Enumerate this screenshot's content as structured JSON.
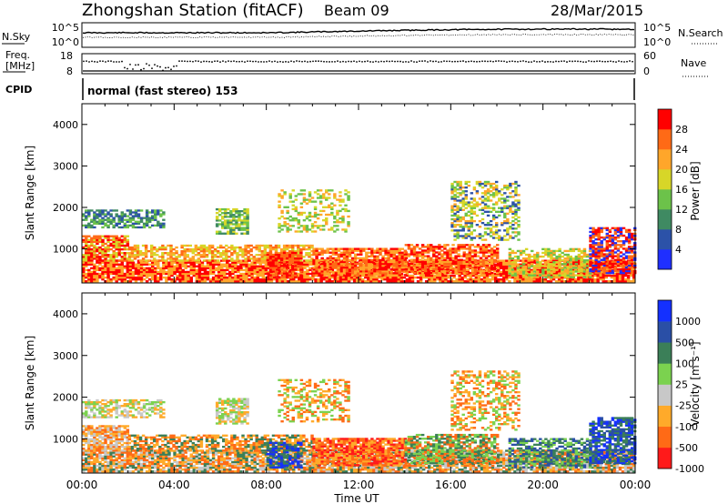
{
  "header": {
    "station": "Zhongshan Station (fitACF)",
    "beam": "Beam 09",
    "date": "28/Mar/2015"
  },
  "summary_panels": {
    "nsky_label": "N.Sky",
    "nsky_ticks": [
      "10^5",
      "10^0"
    ],
    "nsearch_label": "N.Search",
    "nsearch_ticks": [
      "10^5",
      "10^0"
    ],
    "freq_label_1": "Freq.",
    "freq_label_2": "[MHz]",
    "freq_ticks": [
      "18",
      "8"
    ],
    "nave_label": "Nave",
    "nave_ticks": [
      "60",
      "0"
    ],
    "cpid_label": "CPID",
    "cpid_value": "normal (fast stereo) 153"
  },
  "colors": {
    "power_scale": [
      "#1f2fff",
      "#2c52a8",
      "#3f8a62",
      "#6cc24a",
      "#d7d628",
      "#ffa62a",
      "#ff6a16",
      "#ff0000"
    ],
    "velocity_scale": [
      "#ff1a1a",
      "#ff6a16",
      "#ffaa2a",
      "#c8c8c8",
      "#7bd24f",
      "#3b7f58",
      "#2a4fa6",
      "#1430ff"
    ]
  },
  "chart_data": [
    {
      "type": "heatmap",
      "name": "power-panel",
      "ylabel": "Slant Range [km]",
      "xlabel": "",
      "x_ticks": [
        "00:00",
        "04:00",
        "08:00",
        "12:00",
        "16:00",
        "20:00",
        "00:00"
      ],
      "y_ticks": [
        1000,
        2000,
        3000,
        4000
      ],
      "ylim": [
        180,
        4500
      ],
      "xlim_hours": [
        0,
        24
      ],
      "colorbar": {
        "label": "Power [dB]",
        "ticks": [
          "4",
          "8",
          "12",
          "16",
          "20",
          "24",
          "28"
        ],
        "range": [
          0,
          32
        ]
      }
    },
    {
      "type": "heatmap",
      "name": "velocity-panel",
      "ylabel": "Slant Range [km]",
      "xlabel": "Time UT",
      "x_ticks": [
        "00:00",
        "04:00",
        "08:00",
        "12:00",
        "16:00",
        "20:00",
        "00:00"
      ],
      "y_ticks": [
        1000,
        2000,
        3000,
        4000
      ],
      "ylim": [
        180,
        4500
      ],
      "xlim_hours": [
        0,
        24
      ],
      "colorbar": {
        "label": "Velocity [m s⁻¹]",
        "ticks": [
          "1000",
          "500",
          "100",
          "25",
          "-25",
          "-100",
          "-500",
          "-1000"
        ]
      }
    }
  ]
}
